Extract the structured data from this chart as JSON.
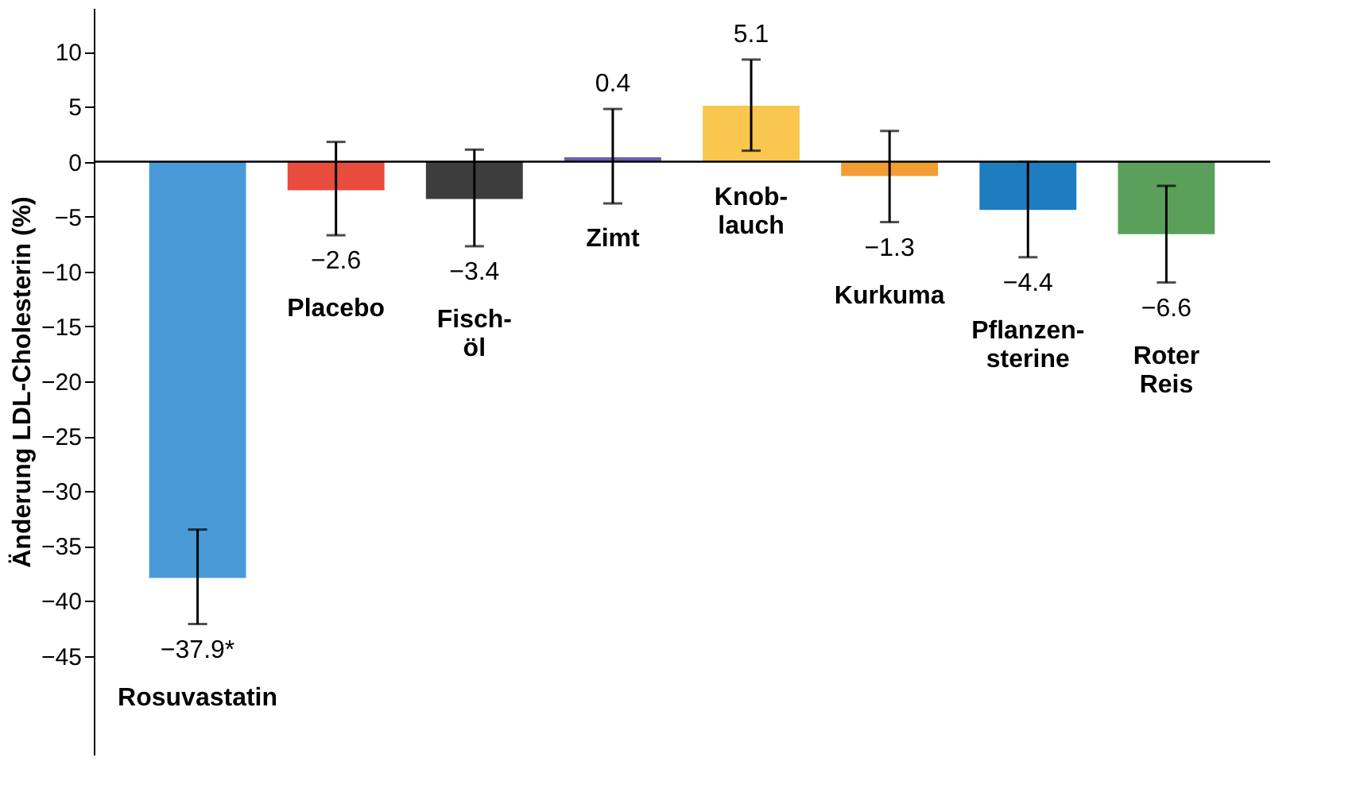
{
  "chart_data": {
    "type": "bar",
    "ylabel": "Änderung LDL-Cholesterin (%)",
    "categories": [
      "Rosuvastatin",
      "Placebo",
      "Fisch-\nöl",
      "Zimt",
      "Knob-\nlauch",
      "Kurkuma",
      "Pflanzen-\nsterine",
      "Roter\nReis"
    ],
    "values": [
      -37.9,
      -2.6,
      -3.4,
      0.4,
      5.1,
      -1.3,
      -4.4,
      -6.6
    ],
    "colors": [
      "#4a9ad8",
      "#e84c3d",
      "#3d3d3d",
      "#6b5fb5",
      "#f9c74f",
      "#f39c34",
      "#1f7cc0",
      "#5aa05a"
    ],
    "errors": [
      [
        -42.1,
        -33.5
      ],
      [
        -6.7,
        1.8
      ],
      [
        -7.7,
        1.1
      ],
      [
        -3.8,
        4.8
      ],
      [
        1.0,
        9.3
      ],
      [
        -5.5,
        2.8
      ],
      [
        -8.7,
        0.0
      ],
      [
        -11.0,
        -2.2
      ]
    ],
    "value_labels": [
      "−37.9*",
      "−2.6",
      "−3.4",
      "0.4",
      "5.1",
      "−1.3",
      "−4.4",
      "−6.6"
    ],
    "ylim": [
      -54,
      14
    ],
    "yticks": [
      10,
      5,
      0,
      -5,
      -10,
      -15,
      -20,
      -25,
      -30,
      -35,
      -40,
      -45
    ],
    "ref_lines": [
      {
        "axis": "y",
        "value": 0
      }
    ],
    "grid": false
  }
}
